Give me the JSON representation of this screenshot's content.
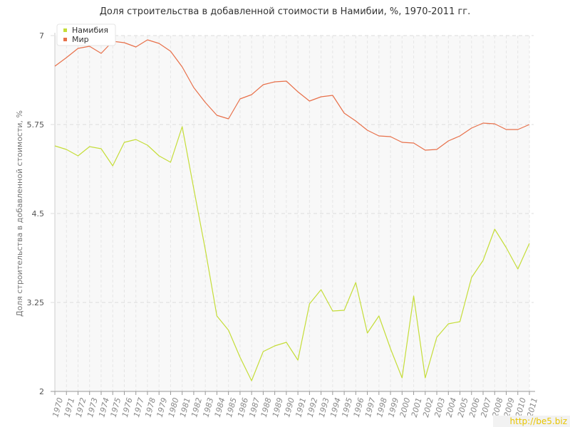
{
  "chart_data": {
    "type": "line",
    "title": "Доля строительства в добавленной стоимости в Намибии, %, 1970-2011 гг.",
    "xlabel": "",
    "ylabel": "Доля строительства в добавленной стоимости, %",
    "ylim": [
      2,
      7
    ],
    "yticks": [
      "2",
      "3.25",
      "4.5",
      "5.75",
      "7"
    ],
    "categories": [
      "1970",
      "1971",
      "1972",
      "1973",
      "1974",
      "1975",
      "1976",
      "1977",
      "1978",
      "1979",
      "1980",
      "1981",
      "1982",
      "1983",
      "1984",
      "1985",
      "1986",
      "1987",
      "1988",
      "1989",
      "1990",
      "1991",
      "1992",
      "1993",
      "1994",
      "1995",
      "1996",
      "1997",
      "1998",
      "1999",
      "2000",
      "2001",
      "2002",
      "2003",
      "2004",
      "2005",
      "2006",
      "2007",
      "2008",
      "2009",
      "2010",
      "2011"
    ],
    "series": [
      {
        "name": "Намибия",
        "color": "#c5dd38",
        "values": [
          5.45,
          5.4,
          5.31,
          5.44,
          5.41,
          5.17,
          5.5,
          5.54,
          5.46,
          5.31,
          5.22,
          5.72,
          4.85,
          3.99,
          3.06,
          2.86,
          2.48,
          2.15,
          2.56,
          2.64,
          2.69,
          2.44,
          3.23,
          3.43,
          3.13,
          3.14,
          3.53,
          2.82,
          3.06,
          2.6,
          2.19,
          3.34,
          2.19,
          2.76,
          2.95,
          2.98,
          3.6,
          3.84,
          4.28,
          4.02,
          3.72,
          4.08
        ]
      },
      {
        "name": "Мир",
        "color": "#e8704a",
        "values": [
          6.57,
          6.69,
          6.82,
          6.85,
          6.75,
          6.92,
          6.9,
          6.84,
          6.94,
          6.89,
          6.78,
          6.56,
          6.27,
          6.06,
          5.88,
          5.83,
          6.11,
          6.17,
          6.31,
          6.35,
          6.36,
          6.21,
          6.08,
          6.14,
          6.16,
          5.91,
          5.8,
          5.67,
          5.59,
          5.58,
          5.5,
          5.49,
          5.39,
          5.4,
          5.52,
          5.59,
          5.7,
          5.77,
          5.76,
          5.68,
          5.68,
          5.75
        ]
      }
    ],
    "legend_position": "top-left",
    "grid": true
  },
  "watermark": "http://be5.biz"
}
